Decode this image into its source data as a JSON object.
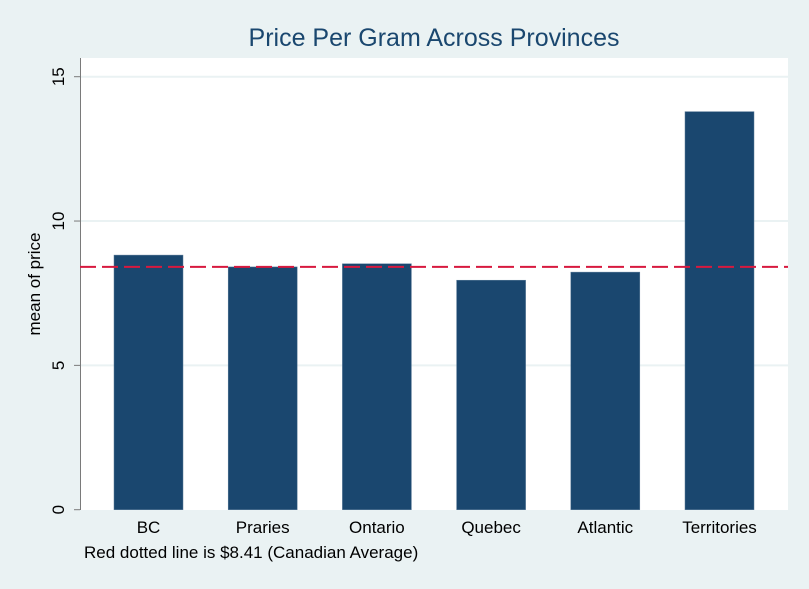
{
  "chart_data": {
    "type": "bar",
    "title": "Price Per Gram Across Provinces",
    "xlabel": "",
    "ylabel": "mean of price",
    "categories": [
      "BC",
      "Praries",
      "Ontario",
      "Quebec",
      "Atlantic",
      "Territories"
    ],
    "values": [
      8.82,
      8.41,
      8.52,
      7.95,
      8.23,
      13.79
    ],
    "ylim": [
      0,
      15
    ],
    "yticks": [
      0,
      5,
      10,
      15
    ],
    "grid": true,
    "reference_line": {
      "value": 8.41,
      "style": "dashed",
      "color": "#d7193f"
    },
    "note": "Red dotted line is $8.41 (Canadian Average)",
    "bar_color": "#1a476f",
    "title_color": "#1a476f",
    "background_color": "#eaf2f3"
  }
}
